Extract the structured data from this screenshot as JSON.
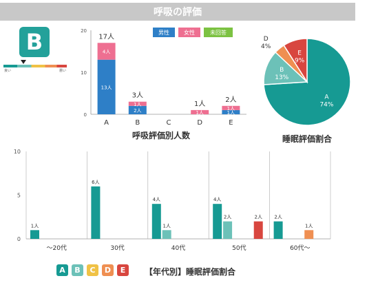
{
  "page_title": "呼吸の評価",
  "grade": "B",
  "scale_labels": {
    "left": "良い",
    "right": "悪い"
  },
  "captions": {
    "breathing_chart": "呼吸評価別人数",
    "pie_chart": "睡眠評価割合",
    "age_chart": "【年代別】睡眠評価割合"
  },
  "grade_badges": [
    {
      "label": "A",
      "color": "#169a93"
    },
    {
      "label": "B",
      "color": "#6cc1b8"
    },
    {
      "label": "C",
      "color": "#f0c246"
    },
    {
      "label": "D",
      "color": "#ef8f52"
    },
    {
      "label": "E",
      "color": "#d8463f"
    }
  ],
  "chart_data": [
    {
      "type": "bar",
      "stacked": true,
      "title": "呼吸評価別人数",
      "categories": [
        "A",
        "B",
        "C",
        "D",
        "E"
      ],
      "ylim": [
        0,
        20
      ],
      "yticks": [
        0,
        10,
        20
      ],
      "legend": "top-right",
      "series": [
        {
          "name": "男性",
          "color": "#2e7fc7",
          "values": [
            13,
            2,
            0,
            0,
            1
          ],
          "labels": [
            "13人",
            "2人",
            "",
            "",
            "1人"
          ]
        },
        {
          "name": "女性",
          "color": "#ee6f91",
          "values": [
            4,
            1,
            0,
            1,
            1
          ],
          "labels": [
            "4人",
            "1人",
            "",
            "1人",
            "1人"
          ]
        },
        {
          "name": "未回答",
          "color": "#7cc242",
          "values": [
            0,
            0,
            0,
            0,
            0
          ],
          "labels": [
            "",
            "",
            "",
            "",
            ""
          ]
        }
      ],
      "totals": [
        "17人",
        "3人",
        "",
        "1人",
        "2人"
      ]
    },
    {
      "type": "pie",
      "title": "睡眠評価割合",
      "slices": [
        {
          "label": "A",
          "pct_label": "74%",
          "value": 74,
          "color": "#169a93"
        },
        {
          "label": "B",
          "pct_label": "13%",
          "value": 13,
          "color": "#6cc1b8"
        },
        {
          "label": "D",
          "pct_label": "4%",
          "value": 4,
          "color": "#ef8f52"
        },
        {
          "label": "E",
          "pct_label": "9%",
          "value": 9,
          "color": "#d8463f"
        }
      ]
    },
    {
      "type": "bar",
      "title": "【年代別】睡眠評価割合",
      "categories": [
        "～20代",
        "30代",
        "40代",
        "50代",
        "60代～"
      ],
      "ylim": [
        0,
        10
      ],
      "yticks": [
        0,
        5,
        10
      ],
      "series": [
        {
          "name": "A",
          "color": "#169a93",
          "values": [
            1,
            6,
            4,
            4,
            2
          ]
        },
        {
          "name": "B",
          "color": "#6cc1b8",
          "values": [
            0,
            0,
            1,
            2,
            0
          ]
        },
        {
          "name": "C",
          "color": "#f0c246",
          "values": [
            0,
            0,
            0,
            0,
            0
          ]
        },
        {
          "name": "D",
          "color": "#ef8f52",
          "values": [
            0,
            0,
            0,
            0,
            1
          ]
        },
        {
          "name": "E",
          "color": "#d8463f",
          "values": [
            0,
            0,
            0,
            2,
            0
          ]
        }
      ],
      "value_labels": [
        [
          "1人",
          "",
          "",
          "",
          ""
        ],
        [
          "6人",
          "",
          "",
          "",
          ""
        ],
        [
          "4人",
          "1人",
          "",
          "",
          ""
        ],
        [
          "4人",
          "2人",
          "",
          "",
          "2人"
        ],
        [
          "2人",
          "",
          "",
          "1人",
          ""
        ]
      ]
    }
  ]
}
